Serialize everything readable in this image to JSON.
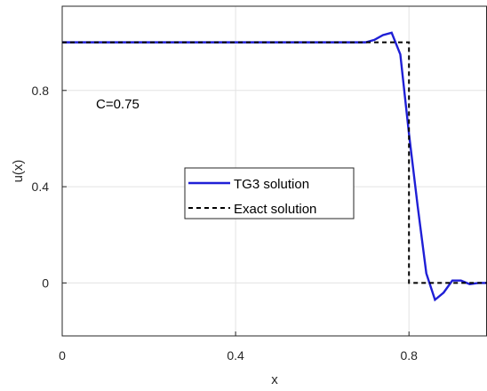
{
  "chart_data": {
    "type": "line",
    "xlabel": "x",
    "ylabel": "u(x)",
    "xlim": [
      0,
      0.98
    ],
    "ylim": [
      -0.22,
      1.15
    ],
    "xticks": [
      0,
      0.4,
      0.8
    ],
    "xtick_labels": [
      "0",
      "0.4",
      "0.8"
    ],
    "yticks": [
      0,
      0.4,
      0.8
    ],
    "ytick_labels": [
      "0",
      "0.4",
      "0.8"
    ],
    "grid": true,
    "legend_position": "center",
    "annotation": "C=0.75",
    "series": [
      {
        "name": "TG3 solution",
        "style": "solid",
        "color": "#1f1fd6",
        "x": [
          0,
          0.66,
          0.7,
          0.72,
          0.74,
          0.76,
          0.78,
          0.8,
          0.82,
          0.84,
          0.86,
          0.88,
          0.9,
          0.92,
          0.94,
          0.96,
          0.98
        ],
        "y": [
          1.0,
          1.0,
          1.0,
          1.01,
          1.03,
          1.04,
          0.95,
          0.62,
          0.32,
          0.04,
          -0.07,
          -0.04,
          0.01,
          0.01,
          -0.005,
          0.0,
          0.0
        ]
      },
      {
        "name": "Exact solution",
        "style": "dashed",
        "color": "#000000",
        "x": [
          0,
          0.8,
          0.8,
          0.98
        ],
        "y": [
          1.0,
          1.0,
          0.0,
          0.0
        ]
      }
    ]
  }
}
